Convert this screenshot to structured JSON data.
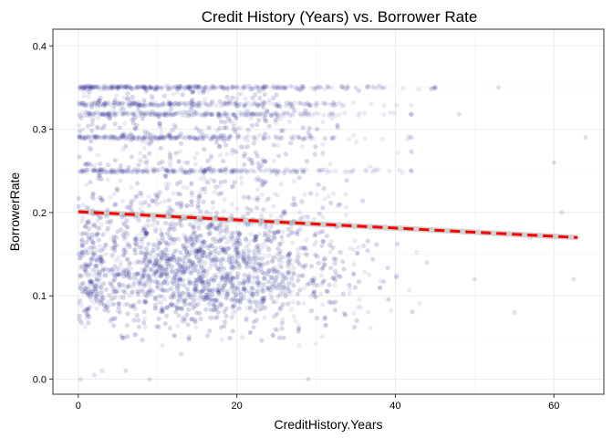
{
  "chart_data": {
    "type": "scatter",
    "title": "Credit History (Years) vs. Borrower Rate",
    "xlabel": "CreditHistory.Years",
    "ylabel": "BorrowerRate",
    "xlim": [
      -3.2,
      66.3
    ],
    "ylim": [
      -0.018,
      0.42
    ],
    "x_ticks": [
      0,
      20,
      40,
      60
    ],
    "x_tick_labels": [
      "0",
      "20",
      "40",
      "60"
    ],
    "y_ticks": [
      0.0,
      0.1,
      0.2,
      0.3,
      0.4
    ],
    "y_tick_labels": [
      "0.0",
      "0.1",
      "0.2",
      "0.3",
      "0.4"
    ],
    "grid": true,
    "point_color": "#000080",
    "point_alpha": 0.08,
    "trend_line": {
      "x": [
        0,
        63
      ],
      "y": [
        0.201,
        0.17
      ],
      "color": "#ff0000",
      "style": "dashed"
    },
    "confidence_band_color": "#999999",
    "horizontal_bands_y": [
      0.35,
      0.33,
      0.318,
      0.29,
      0.25
    ],
    "points": [
      {
        "x": 2.0,
        "y": 0.35
      },
      {
        "x": 5.0,
        "y": 0.35
      },
      {
        "x": 10.0,
        "y": 0.35
      },
      {
        "x": 15.0,
        "y": 0.35
      },
      {
        "x": 20.0,
        "y": 0.35
      },
      {
        "x": 25.0,
        "y": 0.35
      },
      {
        "x": 30.0,
        "y": 0.35
      },
      {
        "x": 35.0,
        "y": 0.35
      },
      {
        "x": 45.0,
        "y": 0.35
      },
      {
        "x": 53.0,
        "y": 0.35
      },
      {
        "x": 3.0,
        "y": 0.318
      },
      {
        "x": 12.0,
        "y": 0.318
      },
      {
        "x": 22.0,
        "y": 0.318
      },
      {
        "x": 32.0,
        "y": 0.318
      },
      {
        "x": 42.0,
        "y": 0.318
      },
      {
        "x": 48.0,
        "y": 0.318
      },
      {
        "x": 4.0,
        "y": 0.29
      },
      {
        "x": 14.0,
        "y": 0.29
      },
      {
        "x": 24.0,
        "y": 0.29
      },
      {
        "x": 8.0,
        "y": 0.12
      },
      {
        "x": 12.0,
        "y": 0.15
      },
      {
        "x": 16.0,
        "y": 0.11
      },
      {
        "x": 20.0,
        "y": 0.14
      },
      {
        "x": 24.0,
        "y": 0.13
      },
      {
        "x": 10.0,
        "y": 0.22
      },
      {
        "x": 18.0,
        "y": 0.25
      },
      {
        "x": 28.0,
        "y": 0.18
      },
      {
        "x": 36.0,
        "y": 0.16
      },
      {
        "x": 44.0,
        "y": 0.14
      },
      {
        "x": 50.0,
        "y": 0.12
      },
      {
        "x": 57.0,
        "y": 0.17
      },
      {
        "x": 60.0,
        "y": 0.26
      },
      {
        "x": 62.5,
        "y": 0.12
      },
      {
        "x": 55.0,
        "y": 0.08
      },
      {
        "x": 64.0,
        "y": 0.29
      },
      {
        "x": 61.0,
        "y": 0.2
      },
      {
        "x": 0.3,
        "y": 0.0
      },
      {
        "x": 3.0,
        "y": 0.01
      },
      {
        "x": 6.0,
        "y": 0.01
      },
      {
        "x": 9.0,
        "y": 0.0
      },
      {
        "x": 13.0,
        "y": 0.03
      },
      {
        "x": 29.0,
        "y": 0.0
      },
      {
        "x": 2.0,
        "y": 0.005
      }
    ]
  }
}
